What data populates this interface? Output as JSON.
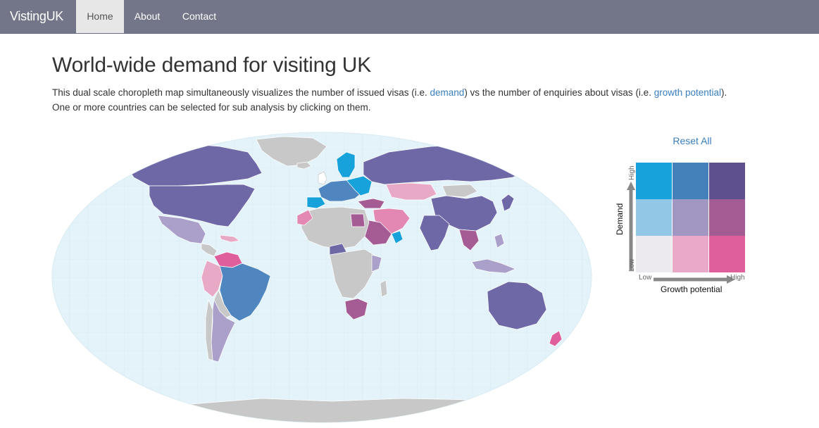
{
  "navbar": {
    "brand": "VistingUK",
    "items": [
      {
        "label": "Home",
        "active": true
      },
      {
        "label": "About",
        "active": false
      },
      {
        "label": "Contact",
        "active": false
      }
    ],
    "background": "#737688"
  },
  "heading": {
    "title": "World-wide demand for visiting UK"
  },
  "intro": {
    "part1": "This dual scale choropleth map simultaneously visualizes the number of issued visas (i.e. ",
    "link_demand": "demand",
    "part2": ") vs the number of enquiries about visas (i.e. ",
    "link_growth": "growth potential",
    "part3": ").",
    "line2": "One or more countries can be selected for sub analysis by clicking on them."
  },
  "reset_label": "Reset All",
  "legend": {
    "x_title": "Growth potential",
    "y_title": "Demand",
    "x_low": "Low",
    "x_high": "High",
    "y_low": "Low",
    "y_high": "High",
    "grid_rows_high_to_low": [
      [
        "#18a2db",
        "#4481bb",
        "#5e508f"
      ],
      [
        "#93c7e6",
        "#a297c3",
        "#a55c95"
      ],
      [
        "#ece9ef",
        "#eba9c9",
        "#de5f9b"
      ]
    ]
  },
  "map": {
    "ocean_color": "#e3f3f9",
    "no_data_color": "#c8c8c8",
    "regions": [
      {
        "name": "North America",
        "level": "high demand / high growth"
      },
      {
        "name": "Mexico",
        "level": "medium demand / medium growth"
      },
      {
        "name": "Brazil",
        "level": "high demand / medium growth"
      },
      {
        "name": "Argentina",
        "level": "medium demand / medium growth"
      },
      {
        "name": "Russia",
        "level": "high demand / high growth"
      },
      {
        "name": "China",
        "level": "high demand / high growth"
      },
      {
        "name": "India",
        "level": "high demand / high growth"
      },
      {
        "name": "Australia",
        "level": "high demand / high growth"
      },
      {
        "name": "Western Europe",
        "level": "high demand / low growth"
      }
    ]
  }
}
